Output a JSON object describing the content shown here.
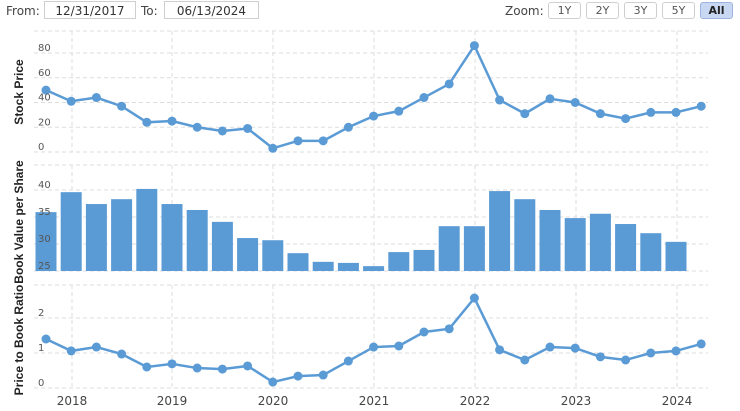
{
  "toolbar": {
    "from_label": "From:",
    "from_value": "12/31/2017",
    "to_label": "To:",
    "to_value": "06/13/2024",
    "zoom_label": "Zoom:",
    "zoom_buttons": [
      "1Y",
      "2Y",
      "3Y",
      "5Y",
      "All"
    ],
    "zoom_active": "All"
  },
  "colors": {
    "series": "#5b9bd5",
    "grid": "#dddddd"
  },
  "x_axis": {
    "labels": [
      "2018",
      "2019",
      "2020",
      "2021",
      "2022",
      "2023",
      "2024"
    ]
  },
  "chart_data": [
    {
      "type": "line",
      "title": "",
      "ylabel": "Stock Price",
      "xlabel": "",
      "ylim": [
        0,
        90
      ],
      "yticks": [
        0,
        20,
        40,
        60,
        80
      ],
      "grid": true,
      "x": [
        "2017-12",
        "2018-03",
        "2018-06",
        "2018-09",
        "2018-12",
        "2019-03",
        "2019-06",
        "2019-09",
        "2019-12",
        "2020-03",
        "2020-06",
        "2020-09",
        "2020-12",
        "2021-03",
        "2021-06",
        "2021-09",
        "2021-12",
        "2022-03",
        "2022-06",
        "2022-09",
        "2022-12",
        "2023-03",
        "2023-06",
        "2023-09",
        "2023-12",
        "2024-03",
        "2024-06"
      ],
      "values": [
        50,
        41,
        44,
        37,
        24,
        25,
        20,
        17,
        19,
        3,
        9,
        9,
        20,
        29,
        33,
        44,
        55,
        86,
        42,
        31,
        43,
        40,
        31,
        27,
        32,
        32,
        37
      ]
    },
    {
      "type": "bar",
      "title": "",
      "ylabel": "Book Value per Share",
      "xlabel": "",
      "ylim": [
        25,
        42
      ],
      "yticks": [
        25,
        30,
        35,
        40
      ],
      "grid": true,
      "x": [
        "2017-12",
        "2018-03",
        "2018-06",
        "2018-09",
        "2018-12",
        "2019-03",
        "2019-06",
        "2019-09",
        "2019-12",
        "2020-03",
        "2020-06",
        "2020-09",
        "2020-12",
        "2021-03",
        "2021-06",
        "2021-09",
        "2021-12",
        "2022-03",
        "2022-06",
        "2022-09",
        "2022-12",
        "2023-03",
        "2023-06",
        "2023-09",
        "2023-12",
        "2024-03"
      ],
      "values": [
        35.9,
        39.6,
        37.4,
        38.3,
        40.2,
        37.4,
        36.3,
        34.1,
        31.1,
        30.7,
        28.3,
        26.7,
        26.5,
        25.9,
        28.5,
        28.9,
        33.3,
        33.3,
        39.8,
        38.3,
        36.3,
        34.8,
        35.6,
        33.7,
        32.0,
        30.4
      ]
    },
    {
      "type": "line",
      "title": "",
      "ylabel": "Price to Book Ratio",
      "xlabel": "",
      "ylim": [
        0,
        2.8
      ],
      "yticks": [
        0,
        1,
        2
      ],
      "grid": true,
      "x": [
        "2017-12",
        "2018-03",
        "2018-06",
        "2018-09",
        "2018-12",
        "2019-03",
        "2019-06",
        "2019-09",
        "2019-12",
        "2020-03",
        "2020-06",
        "2020-09",
        "2020-12",
        "2021-03",
        "2021-06",
        "2021-09",
        "2021-12",
        "2022-03",
        "2022-06",
        "2022-09",
        "2022-12",
        "2023-03",
        "2023-06",
        "2023-09",
        "2023-12",
        "2024-03",
        "2024-06"
      ],
      "values": [
        1.4,
        1.06,
        1.17,
        0.97,
        0.6,
        0.69,
        0.57,
        0.54,
        0.63,
        0.17,
        0.34,
        0.37,
        0.77,
        1.17,
        1.2,
        1.6,
        1.69,
        2.57,
        1.09,
        0.8,
        1.17,
        1.14,
        0.89,
        0.8,
        1.0,
        1.06,
        1.26
      ]
    }
  ]
}
